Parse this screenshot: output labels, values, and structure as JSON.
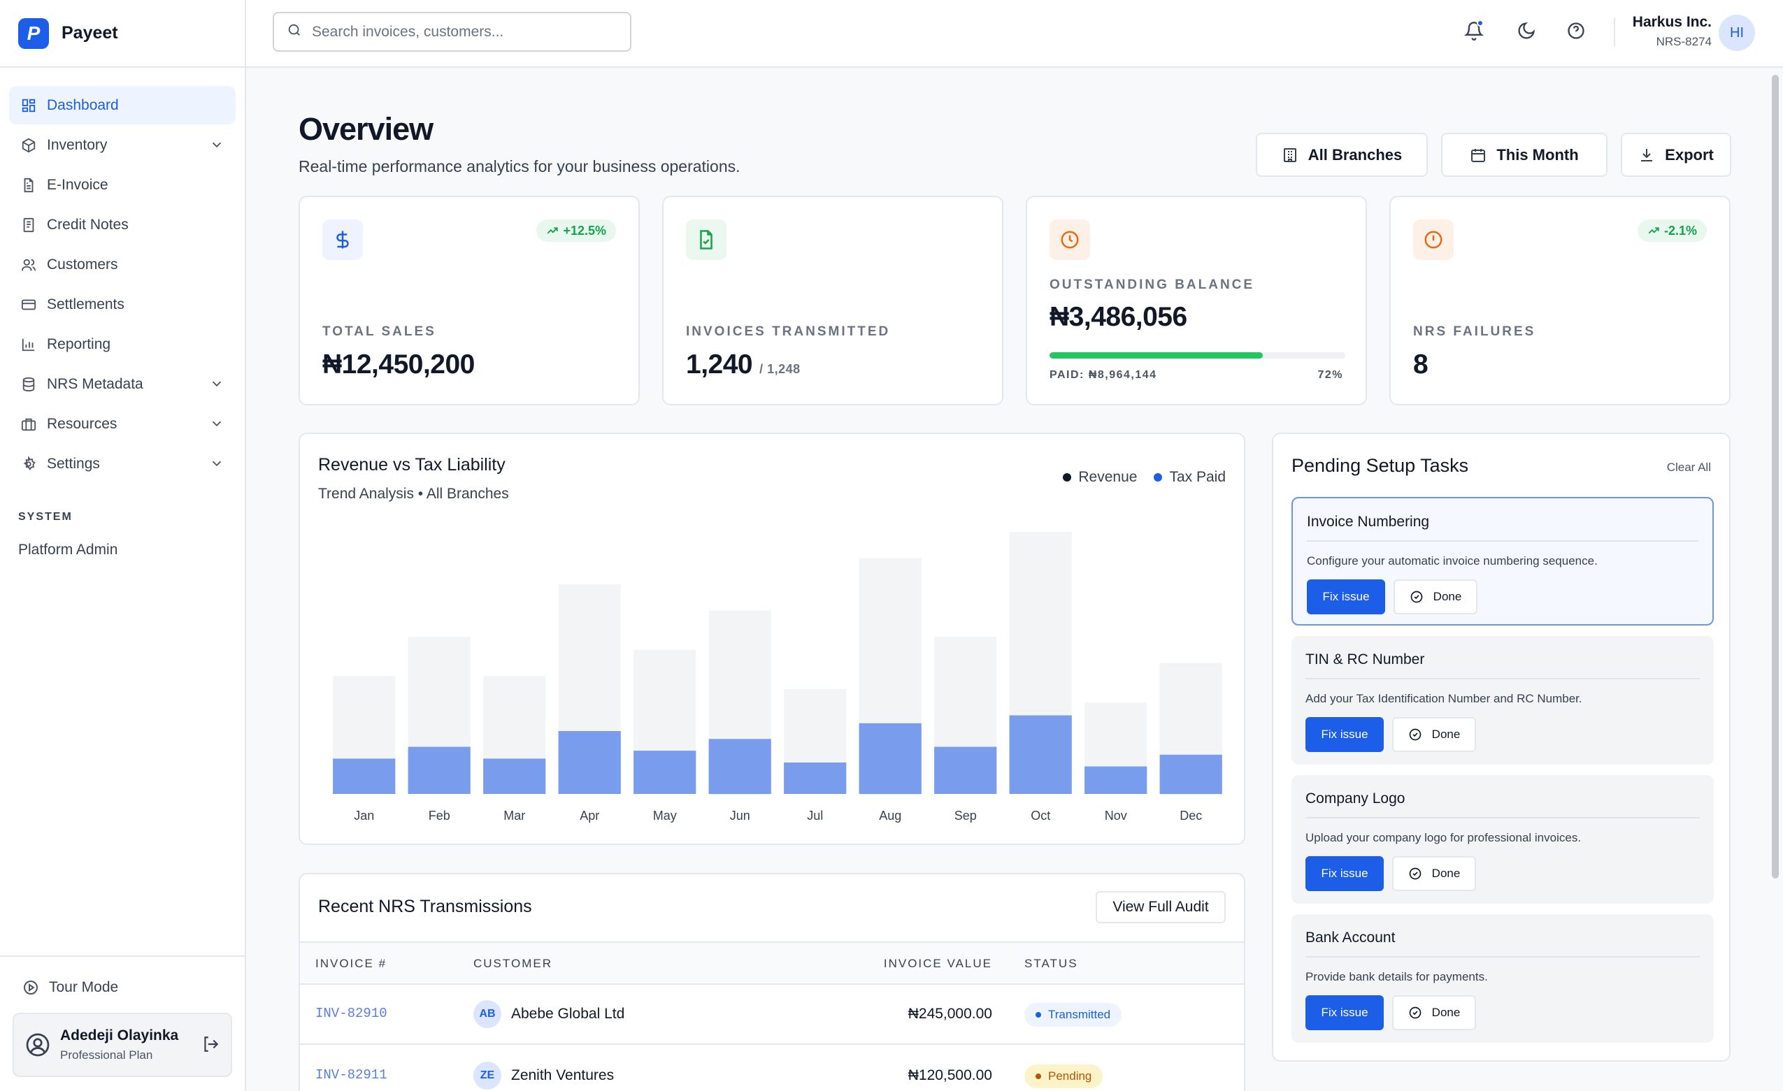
{
  "brand": {
    "logo_letter": "P",
    "name": "Payeet"
  },
  "sidebar": {
    "items": [
      {
        "label": "Dashboard",
        "icon": "grid-icon",
        "active": true
      },
      {
        "label": "Inventory",
        "icon": "box-icon",
        "expandable": true
      },
      {
        "label": "E-Invoice",
        "icon": "file-text-icon"
      },
      {
        "label": "Credit Notes",
        "icon": "receipt-icon"
      },
      {
        "label": "Customers",
        "icon": "users-icon"
      },
      {
        "label": "Settlements",
        "icon": "credit-card-icon"
      },
      {
        "label": "Reporting",
        "icon": "bar-chart-icon"
      },
      {
        "label": "NRS Metadata",
        "icon": "database-icon",
        "expandable": true
      },
      {
        "label": "Resources",
        "icon": "briefcase-icon",
        "expandable": true
      },
      {
        "label": "Settings",
        "icon": "gear-icon",
        "expandable": true
      }
    ],
    "section_label": "SYSTEM",
    "platform_admin": "Platform Admin",
    "tour_mode": "Tour Mode",
    "user": {
      "name": "Adedeji Olayinka",
      "plan": "Professional Plan"
    }
  },
  "topbar": {
    "search_placeholder": "Search invoices, customers...",
    "org_name": "Harkus Inc.",
    "org_id": "NRS-8274",
    "avatar_initials": "HI"
  },
  "header": {
    "title": "Overview",
    "subtitle": "Real-time performance analytics for your business operations.",
    "branches_label": "All Branches",
    "period_label": "This Month",
    "export_label": "Export"
  },
  "stats": {
    "total_sales": {
      "label": "TOTAL SALES",
      "value": "₦12,450,200",
      "badge": "+12.5%"
    },
    "invoices": {
      "label": "INVOICES TRANSMITTED",
      "value": "1,240",
      "sub": "/ 1,248"
    },
    "outstanding": {
      "label": "OUTSTANDING BALANCE",
      "value": "₦3,486,056",
      "paid_label": "PAID: ₦8,964,144",
      "pct_label": "72%",
      "progress_fraction": 0.72
    },
    "failures": {
      "label": "NRS FAILURES",
      "value": "8",
      "badge": "-2.1%"
    }
  },
  "chart_data": {
    "type": "bar",
    "title": "Revenue vs Tax Liability",
    "subtitle": "Trend Analysis",
    "subtitle_tag": "All Branches",
    "categories": [
      "Jan",
      "Feb",
      "Mar",
      "Apr",
      "May",
      "Jun",
      "Jul",
      "Aug",
      "Sep",
      "Oct",
      "Nov",
      "Dec"
    ],
    "series": [
      {
        "name": "Revenue",
        "values": [
          45,
          60,
          45,
          80,
          55,
          70,
          40,
          90,
          60,
          100,
          35,
          50
        ],
        "color": "#f3f4f6"
      },
      {
        "name": "Tax Paid",
        "values": [
          13.5,
          18,
          13.5,
          24,
          16.5,
          21,
          12,
          27,
          18,
          30,
          10.5,
          15
        ],
        "color": "#7a9cec"
      }
    ],
    "legend_colors": [
      "#111827",
      "#1d5ee8"
    ],
    "ylim": [
      0,
      100
    ],
    "grid": false,
    "legend_position": "top-right"
  },
  "tasks": {
    "title": "Pending Setup Tasks",
    "clear_label": "Clear All",
    "fix_label": "Fix issue",
    "done_label": "Done",
    "items": [
      {
        "title": "Invoice Numbering",
        "desc": "Configure your automatic invoice numbering sequence."
      },
      {
        "title": "TIN & RC Number",
        "desc": "Add your Tax Identification Number and RC Number."
      },
      {
        "title": "Company Logo",
        "desc": "Upload your company logo for professional invoices."
      },
      {
        "title": "Bank Account",
        "desc": "Provide bank details for payments."
      }
    ]
  },
  "transmissions": {
    "title": "Recent NRS Transmissions",
    "audit_label": "View Full Audit",
    "headers": [
      "INVOICE #",
      "CUSTOMER",
      "INVOICE VALUE",
      "STATUS"
    ],
    "rows": [
      {
        "invoice": "INV-82910",
        "initials": "AB",
        "customer": "Abebe Global Ltd",
        "value": "₦245,000.00",
        "status": "Transmitted",
        "status_color": "#1d5ee8",
        "status_bg": "#eef4ff"
      },
      {
        "invoice": "INV-82911",
        "initials": "ZE",
        "customer": "Zenith Ventures",
        "value": "₦120,500.00",
        "status": "Pending",
        "status_color": "#b45309",
        "status_bg": "#fdf3c8"
      }
    ]
  }
}
